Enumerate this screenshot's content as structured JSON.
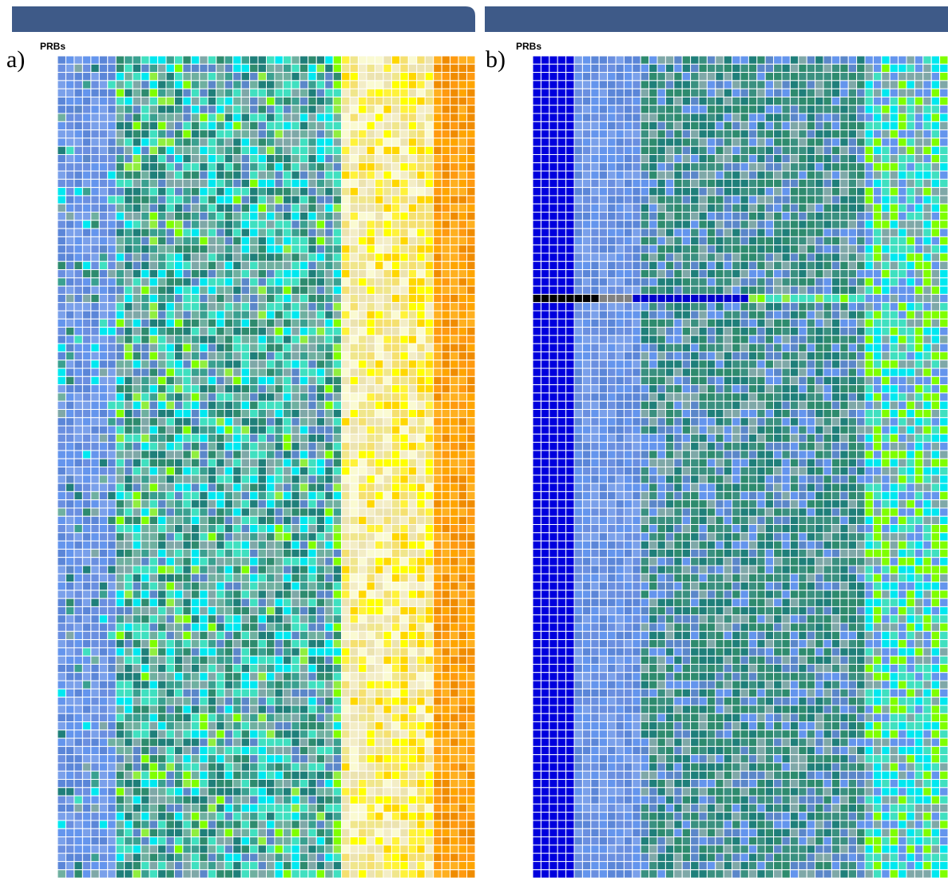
{
  "panels": [
    {
      "label": "a)",
      "axis_label": "PRBs"
    },
    {
      "label": "b)",
      "axis_label": "PRBs"
    }
  ]
}
